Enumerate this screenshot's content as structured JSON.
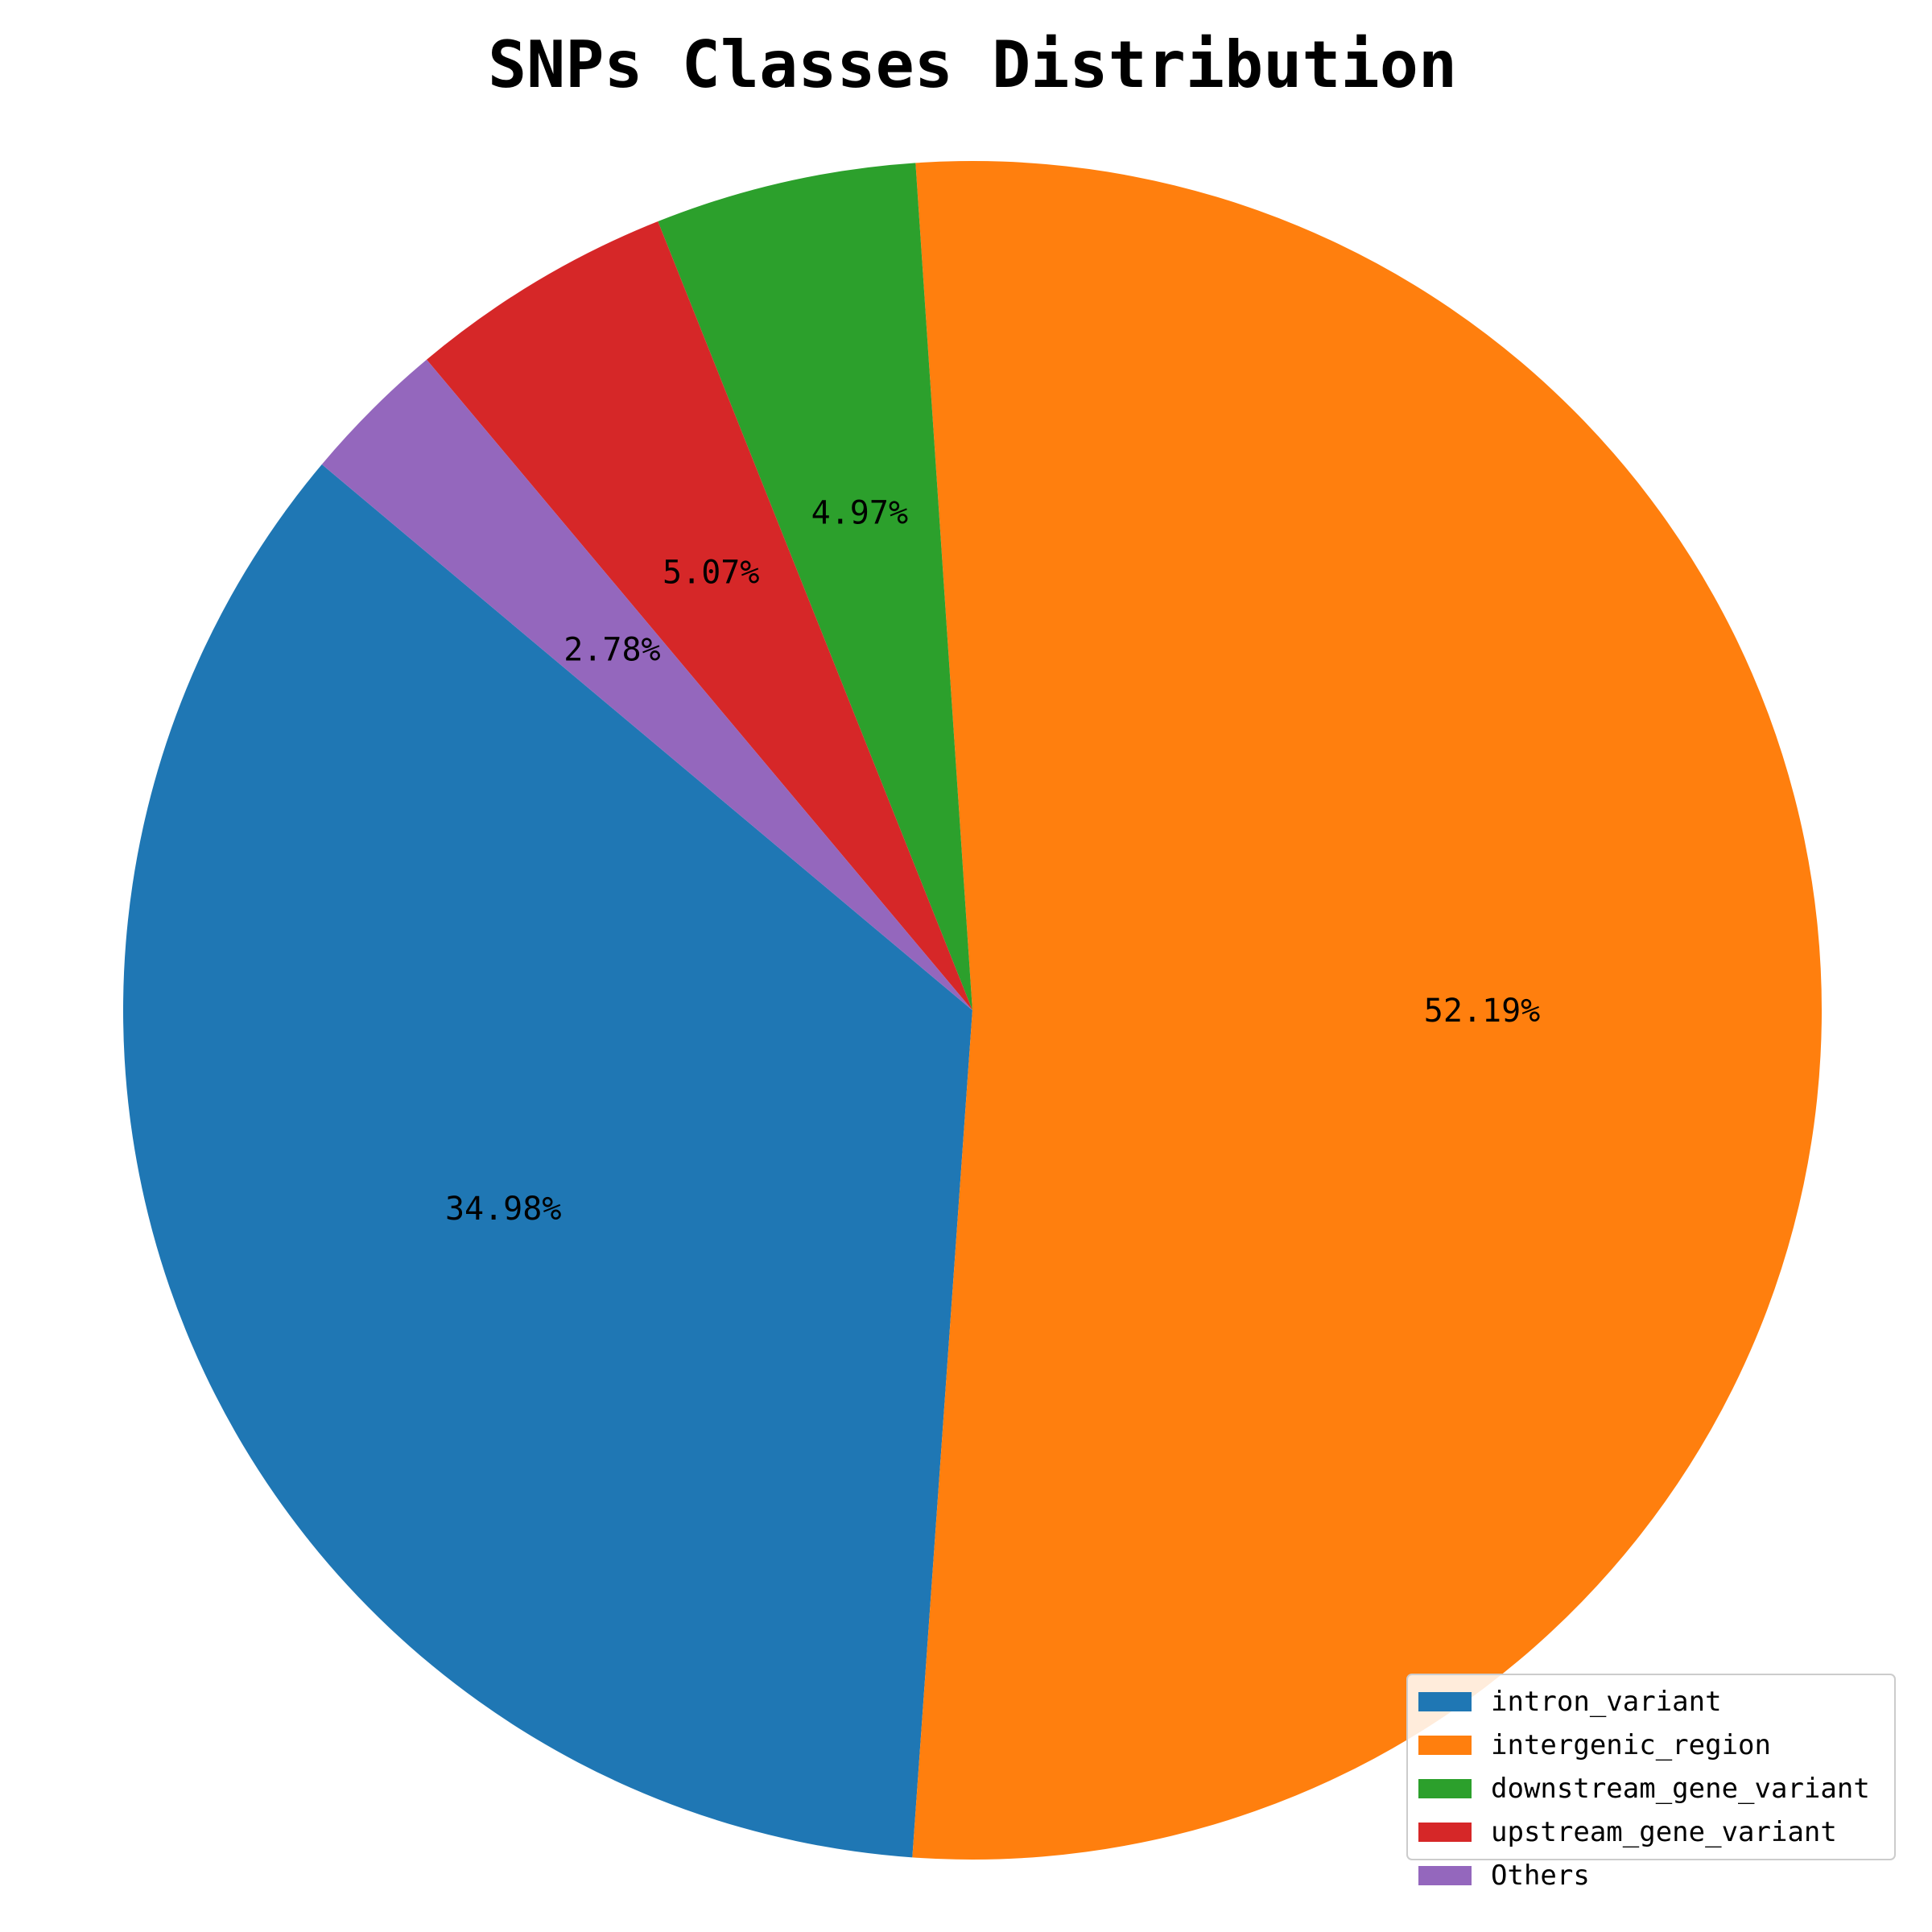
{
  "chart_data": {
    "type": "pie",
    "title": "SNPs Classes Distribution",
    "categories": [
      "intron_variant",
      "intergenic_region",
      "downstream_gene_variant",
      "upstream_gene_variant",
      "Others"
    ],
    "values": [
      34.98,
      52.19,
      4.97,
      5.07,
      2.78
    ],
    "labels": [
      "34.98%",
      "52.19%",
      "4.97%",
      "5.07%",
      "2.78%"
    ],
    "colors": [
      "#1f77b4",
      "#ff7f0e",
      "#2ca02c",
      "#d62728",
      "#9467bd"
    ],
    "start_angle_deg": 140,
    "direction": "counterclockwise",
    "legend_placement": "lower-right"
  }
}
